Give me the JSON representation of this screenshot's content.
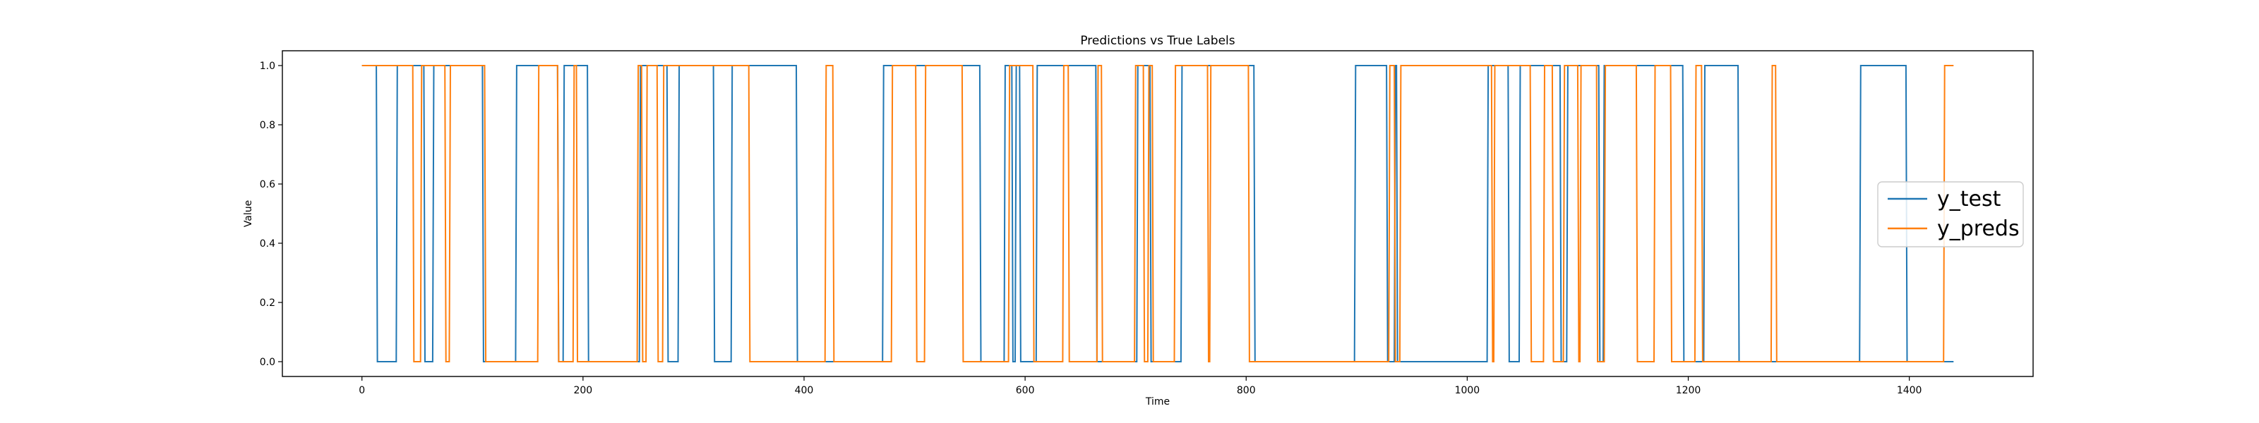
{
  "chart_data": {
    "type": "line",
    "title": "Predictions vs True Labels",
    "xlabel": "Time",
    "ylabel": "Value",
    "xlim": [
      -72,
      1512
    ],
    "ylim": [
      -0.05,
      1.05
    ],
    "xticks": [
      0,
      200,
      400,
      600,
      800,
      1000,
      1200,
      1400
    ],
    "yticks": [
      0.0,
      0.2,
      0.4,
      0.6,
      0.8,
      1.0
    ],
    "xtick_labels": [
      "0",
      "200",
      "400",
      "600",
      "800",
      "1000",
      "1200",
      "1400"
    ],
    "ytick_labels": [
      "0.0",
      "0.2",
      "0.4",
      "0.6",
      "0.8",
      "1.0"
    ],
    "grid": false,
    "legend": "center-right",
    "series": [
      {
        "name": "y_test",
        "color": "#1f77b4",
        "transitions": [
          [
            0,
            1
          ],
          [
            14,
            0
          ],
          [
            32,
            1
          ],
          [
            57,
            0
          ],
          [
            65,
            1
          ],
          [
            110,
            0
          ],
          [
            140,
            1
          ],
          [
            178,
            0
          ],
          [
            183,
            1
          ],
          [
            205,
            0
          ],
          [
            252,
            1
          ],
          [
            277,
            0
          ],
          [
            287,
            1
          ],
          [
            319,
            0
          ],
          [
            335,
            1
          ],
          [
            394,
            0
          ],
          [
            472,
            1
          ],
          [
            560,
            0
          ],
          [
            582,
            1
          ],
          [
            589,
            0
          ],
          [
            592,
            1
          ],
          [
            596,
            0
          ],
          [
            611,
            1
          ],
          [
            665,
            0
          ],
          [
            702,
            1
          ],
          [
            714,
            0
          ],
          [
            742,
            1
          ],
          [
            808,
            0
          ],
          [
            899,
            1
          ],
          [
            928,
            0
          ],
          [
            935,
            1
          ],
          [
            937,
            0
          ],
          [
            1019,
            1
          ],
          [
            1038,
            0
          ],
          [
            1048,
            1
          ],
          [
            1085,
            0
          ],
          [
            1091,
            1
          ],
          [
            1120,
            0
          ],
          [
            1124,
            1
          ],
          [
            1196,
            0
          ],
          [
            1215,
            1
          ],
          [
            1246,
            0
          ],
          [
            1356,
            1
          ],
          [
            1398,
            0
          ],
          [
            1440,
            0
          ]
        ]
      },
      {
        "name": "y_preds",
        "color": "#ff7f0e",
        "transitions": [
          [
            0,
            1
          ],
          [
            47,
            0
          ],
          [
            54,
            1
          ],
          [
            76,
            0
          ],
          [
            80,
            1
          ],
          [
            112,
            0
          ],
          [
            160,
            1
          ],
          [
            178,
            0
          ],
          [
            192,
            1
          ],
          [
            195,
            0
          ],
          [
            250,
            1
          ],
          [
            254,
            0
          ],
          [
            258,
            1
          ],
          [
            268,
            0
          ],
          [
            273,
            1
          ],
          [
            351,
            0
          ],
          [
            420,
            1
          ],
          [
            427,
            0
          ],
          [
            480,
            1
          ],
          [
            502,
            0
          ],
          [
            510,
            1
          ],
          [
            544,
            0
          ],
          [
            586,
            1
          ],
          [
            608,
            0
          ],
          [
            635,
            1
          ],
          [
            640,
            0
          ],
          [
            666,
            1
          ],
          [
            670,
            0
          ],
          [
            700,
            1
          ],
          [
            708,
            0
          ],
          [
            712,
            1
          ],
          [
            716,
            0
          ],
          [
            736,
            1
          ],
          [
            766,
            0
          ],
          [
            768,
            1
          ],
          [
            803,
            0
          ],
          [
            930,
            1
          ],
          [
            935,
            0
          ],
          [
            940,
            1
          ],
          [
            1023,
            0
          ],
          [
            1025,
            1
          ],
          [
            1058,
            0
          ],
          [
            1070,
            1
          ],
          [
            1078,
            0
          ],
          [
            1088,
            1
          ],
          [
            1101,
            0
          ],
          [
            1103,
            1
          ],
          [
            1118,
            0
          ],
          [
            1125,
            1
          ],
          [
            1154,
            0
          ],
          [
            1170,
            1
          ],
          [
            1185,
            0
          ],
          [
            1207,
            1
          ],
          [
            1213,
            0
          ],
          [
            1276,
            1
          ],
          [
            1280,
            0
          ],
          [
            1432,
            1
          ],
          [
            1440,
            1
          ]
        ]
      }
    ]
  }
}
